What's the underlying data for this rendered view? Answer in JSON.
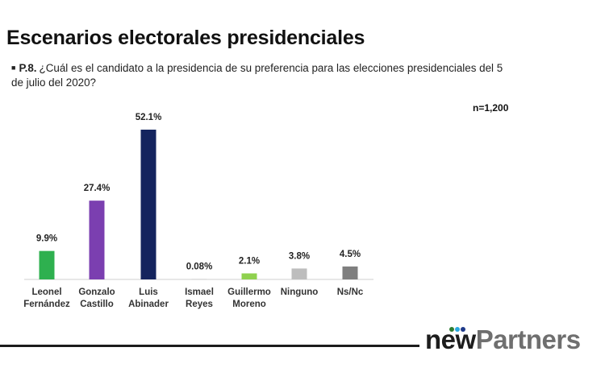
{
  "title": "Escenarios electorales presidenciales",
  "question": {
    "number": "P.8.",
    "text": "¿Cuál es el candidato a la presidencia de su preferencia para las elecciones presidenciales del 5 de julio del 2020?"
  },
  "sample_size": "n=1,200",
  "logo": {
    "part1": "new",
    "part2": "Partners",
    "dot_colors": [
      "#2e7d32",
      "#29a8e0",
      "#1e3a8a"
    ]
  },
  "chart_data": {
    "type": "bar",
    "title": "",
    "xlabel": "",
    "ylabel": "",
    "ylim": [
      0,
      52.1
    ],
    "grid": false,
    "categories": [
      [
        "Leonel",
        "Fernández"
      ],
      [
        "Gonzalo",
        "Castillo"
      ],
      [
        "Luis",
        "Abinader"
      ],
      [
        "Ismael",
        "Reyes"
      ],
      [
        "Guillermo",
        "Moreno"
      ],
      [
        "Ninguno"
      ],
      [
        "Ns/Nc"
      ]
    ],
    "values": [
      9.9,
      27.4,
      52.1,
      0.08,
      2.1,
      3.8,
      4.5
    ],
    "value_labels": [
      "9.9%",
      "27.4%",
      "52.1%",
      "0.08%",
      "2.1%",
      "3.8%",
      "4.5%"
    ],
    "colors": [
      "#2eb04f",
      "#7b3fb0",
      "#14245e",
      "#b8b8b8",
      "#8fd14f",
      "#bdbdbd",
      "#7f7f7f"
    ]
  }
}
